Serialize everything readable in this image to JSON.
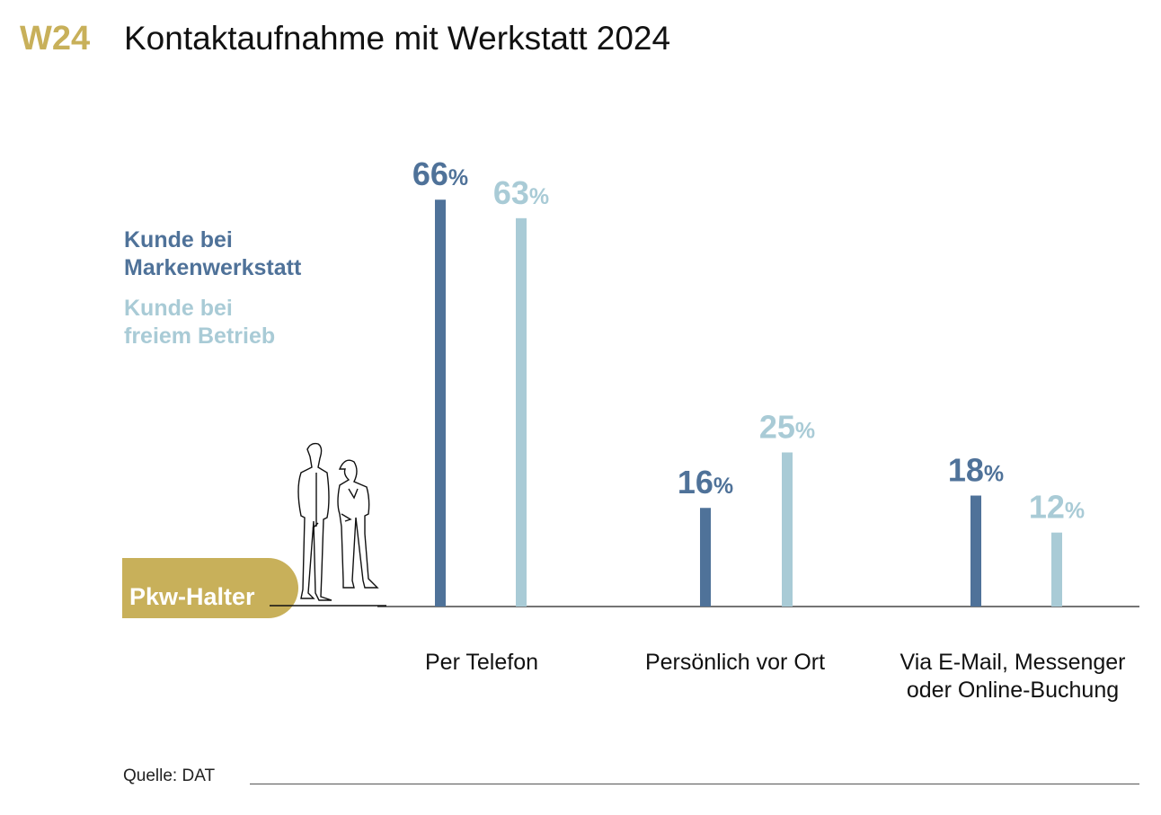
{
  "header": {
    "code": "W24",
    "title": "Kontaktaufnahme mit Werkstatt 2024"
  },
  "badge": {
    "label": "Pkw-Halter"
  },
  "source": "Quelle: DAT",
  "colors": {
    "markenwerkstatt": "#4f7299",
    "freier_betrieb": "#a9cbd6",
    "accent": "#c8b05a"
  },
  "chart_data": {
    "type": "bar",
    "title": "Kontaktaufnahme mit Werkstatt 2024",
    "categories": [
      "Per Telefon",
      "Persönlich vor Ort",
      "Via E-Mail, Messenger oder Online-Buchung"
    ],
    "category_lines": [
      [
        "Per Telefon"
      ],
      [
        "Persönlich vor Ort"
      ],
      [
        "Via E-Mail, Messenger",
        "oder Online-Buchung"
      ]
    ],
    "series": [
      {
        "name": "Kunde bei Markenwerkstatt",
        "legend_lines": [
          "Kunde bei",
          "Markenwerkstatt"
        ],
        "values": [
          66,
          16,
          18
        ],
        "color": "#4f7299"
      },
      {
        "name": "Kunde bei freiem Betrieb",
        "legend_lines": [
          "Kunde bei",
          "freiem Betrieb"
        ],
        "values": [
          63,
          25,
          12
        ],
        "color": "#a9cbd6"
      }
    ],
    "unit": "%",
    "ylim": [
      0,
      70
    ],
    "grid": false,
    "legend_placement": "left"
  }
}
